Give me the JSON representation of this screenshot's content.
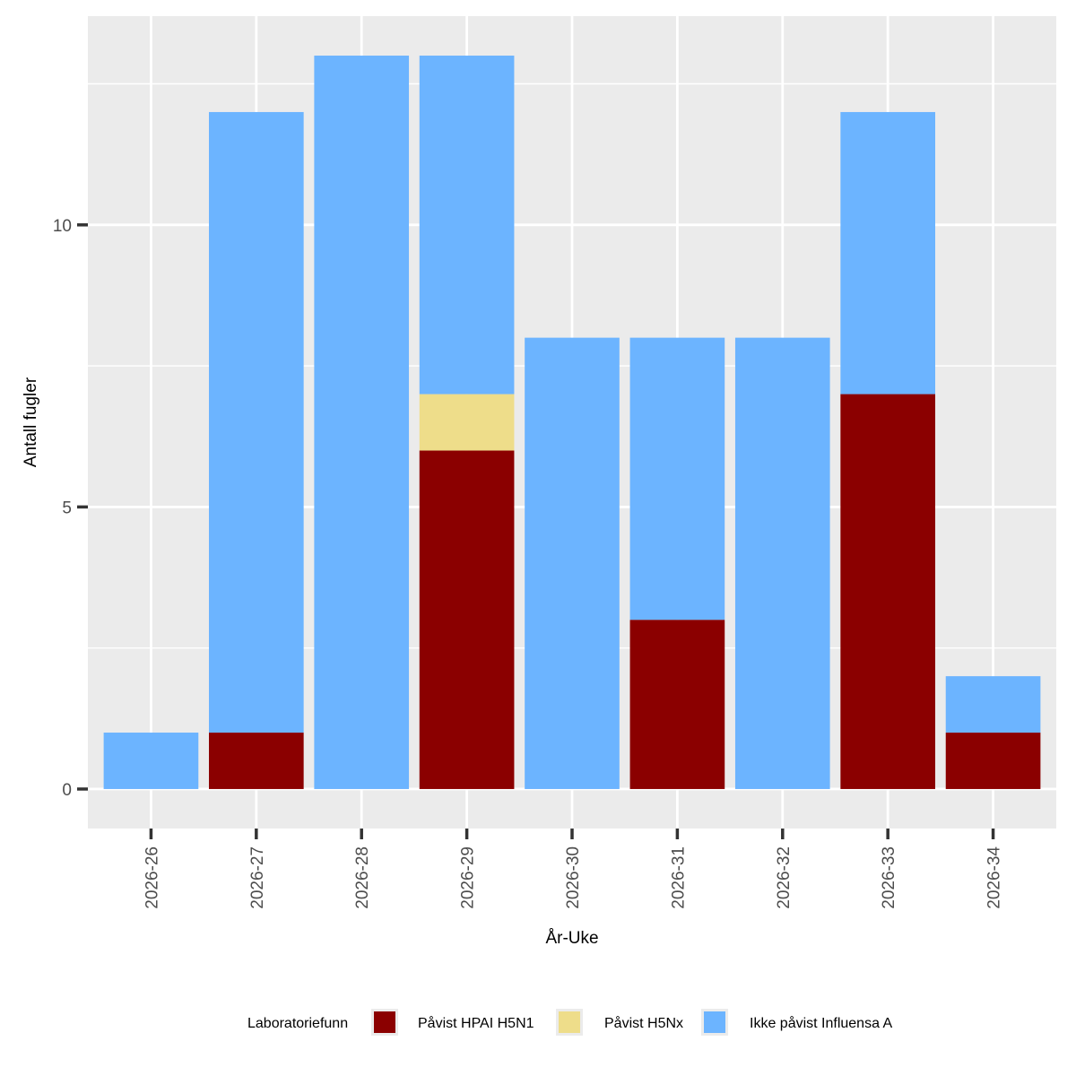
{
  "chart_data": {
    "type": "bar",
    "stacked": true,
    "xlabel": "År-Uke",
    "ylabel": "Antall fugler",
    "ylim": [
      -0.7,
      13.7
    ],
    "yticks": [
      0,
      5,
      10
    ],
    "yminor": [
      2.5,
      7.5,
      12.5
    ],
    "grid": true,
    "legend_position": "bottom",
    "legend_title": "Laboratoriefunn",
    "categories": [
      "2026-26",
      "2026-27",
      "2026-28",
      "2026-29",
      "2026-30",
      "2026-31",
      "2026-32",
      "2026-33",
      "2026-34"
    ],
    "series": [
      {
        "name": "Påvist HPAI H5N1",
        "color": "#8b0000",
        "values": [
          0,
          1,
          0,
          6,
          0,
          3,
          0,
          7,
          1
        ]
      },
      {
        "name": "Påvist H5Nx",
        "color": "#eedd8a",
        "values": [
          0,
          0,
          0,
          1,
          0,
          0,
          0,
          0,
          0
        ]
      },
      {
        "name": "Ikke påvist Influensa A",
        "color": "#6cb4ff",
        "values": [
          1,
          11,
          13,
          6,
          8,
          5,
          8,
          5,
          1
        ]
      }
    ]
  }
}
